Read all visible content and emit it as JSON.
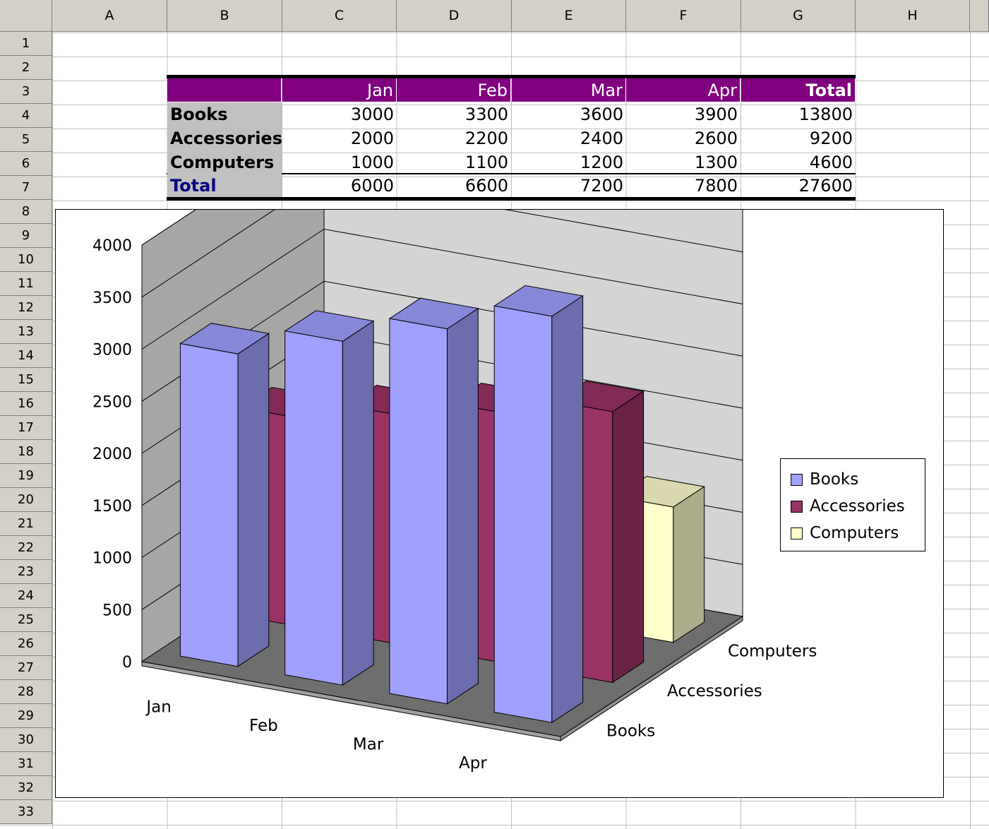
{
  "sheet": {
    "columns": [
      "A",
      "B",
      "C",
      "D",
      "E",
      "F",
      "G",
      "H"
    ],
    "rows": [
      "1",
      "2",
      "3",
      "4",
      "5",
      "6",
      "7",
      "8",
      "9",
      "10",
      "11",
      "12",
      "13",
      "14",
      "15",
      "16",
      "17",
      "18",
      "19",
      "20",
      "21",
      "22",
      "23",
      "24",
      "25",
      "26",
      "27",
      "28",
      "29",
      "30",
      "31",
      "32",
      "33"
    ]
  },
  "table": {
    "header": [
      "Jan",
      "Feb",
      "Mar",
      "Apr",
      "Total"
    ],
    "rows": [
      {
        "label": "Books",
        "values": [
          "3000",
          "3300",
          "3600",
          "3900",
          "13800"
        ]
      },
      {
        "label": "Accessories",
        "values": [
          "2000",
          "2200",
          "2400",
          "2600",
          "9200"
        ]
      },
      {
        "label": "Computers",
        "values": [
          "1000",
          "1100",
          "1200",
          "1300",
          "4600"
        ]
      }
    ],
    "total": {
      "label": "Total",
      "values": [
        "6000",
        "6600",
        "7200",
        "7800",
        "27600"
      ]
    },
    "colors": {
      "header_bg": "#800080",
      "label_bg": "#c0c0c0",
      "total_label": "#000080"
    }
  },
  "chart_data": {
    "type": "bar",
    "categories": [
      "Jan",
      "Feb",
      "Mar",
      "Apr"
    ],
    "series": [
      {
        "name": "Books",
        "values": [
          3000,
          3300,
          3600,
          3900
        ],
        "color": "#a0a0ff"
      },
      {
        "name": "Accessories",
        "values": [
          2000,
          2200,
          2400,
          2600
        ],
        "color": "#993366"
      },
      {
        "name": "Computers",
        "values": [
          1000,
          1100,
          1200,
          1300
        ],
        "color": "#ffffcc"
      }
    ],
    "ylim": [
      0,
      4000
    ],
    "yticks": [
      "0",
      "500",
      "1000",
      "1500",
      "2000",
      "2500",
      "3000",
      "3500",
      "4000"
    ],
    "depth_labels": [
      "Books",
      "Accessories",
      "Computers"
    ],
    "legend": "right",
    "grid": true
  }
}
